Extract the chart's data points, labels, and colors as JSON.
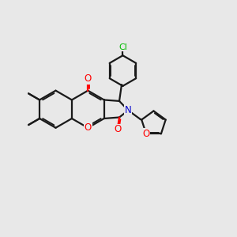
{
  "background_color": "#e8e8e8",
  "bond_color": "#1a1a1a",
  "bond_width": 1.6,
  "atom_colors": {
    "O": "#ff0000",
    "N": "#0000cc",
    "Cl": "#00bb00",
    "C": "#1a1a1a"
  },
  "figsize": [
    3.0,
    3.0
  ],
  "dpi": 100,
  "methyl_labels": [
    "",
    ""
  ],
  "ring_system": "chromeno_pyrrole"
}
